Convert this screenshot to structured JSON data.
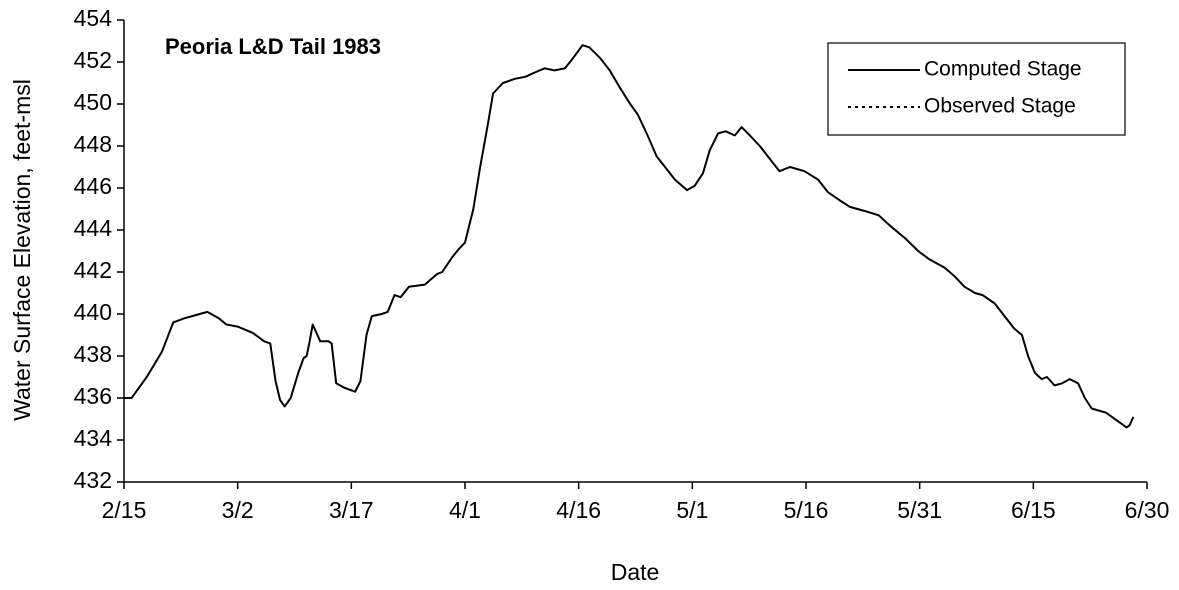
{
  "chart_data": {
    "type": "line",
    "annotation": "Peoria L&D Tail 1983",
    "xlabel": "Date",
    "ylabel": "Water Surface Elevation, feet-msl",
    "x": [
      0,
      1,
      3,
      5,
      6.5,
      8,
      10,
      11,
      12.5,
      13.5,
      15,
      17,
      18.5,
      19.3,
      20,
      20.6,
      21.2,
      22,
      23,
      23.7,
      24.1,
      24.5,
      24.9,
      25.4,
      25.9,
      27,
      27.4,
      28,
      29,
      30.5,
      31.2,
      32,
      32.7,
      34,
      34.8,
      35.7,
      36.5,
      37.6,
      39.7,
      41.3,
      42,
      43.3,
      44.2,
      45,
      46.1,
      47,
      48,
      48.7,
      50,
      51.6,
      53,
      54.2,
      55.5,
      56.8,
      58.2,
      59.5,
      60.5,
      61.4,
      62.8,
      64.1,
      65.4,
      66.8,
      67.8,
      69.1,
      70.3,
      71.4,
      72.7,
      74.3,
      75.3,
      76.4,
      77.3,
      78.4,
      79.4,
      80.6,
      81.5,
      82.6,
      83.9,
      85.2,
      86.5,
      87.9,
      89.8,
      91.6,
      92.9,
      94.5,
      95.8,
      97.8,
      99.6,
      101.1,
      103.1,
      104.8,
      106.3,
      108.3,
      109.6,
      110.9,
      112.3,
      113.3,
      114.9,
      116.2,
      117.5,
      118.5,
      119.3,
      120.2,
      121.1,
      121.8,
      122.8,
      123.8,
      124.8,
      125.9,
      126.8,
      127.7,
      129.6,
      132.3,
      132.7,
      133.2
    ],
    "series": [
      {
        "name": "Computed Stage",
        "color": "#000000",
        "line_style": "solid",
        "values": [
          436.0,
          436.0,
          437.0,
          438.2,
          439.6,
          439.8,
          440.0,
          440.1,
          439.8,
          439.5,
          439.4,
          439.1,
          438.7,
          438.6,
          436.8,
          435.9,
          435.6,
          436.0,
          437.2,
          437.9,
          438.0,
          438.7,
          439.5,
          439.1,
          438.7,
          438.7,
          438.6,
          436.7,
          436.5,
          436.3,
          436.8,
          439.0,
          439.9,
          440.0,
          440.1,
          440.9,
          440.8,
          441.3,
          441.4,
          441.9,
          442.0,
          442.7,
          443.1,
          443.4,
          445.0,
          447.0,
          449.0,
          450.5,
          451.0,
          451.2,
          451.3,
          451.5,
          451.7,
          451.6,
          451.7,
          452.3,
          452.8,
          452.7,
          452.2,
          451.6,
          450.8,
          450.0,
          449.5,
          448.5,
          447.5,
          447.0,
          446.4,
          445.9,
          446.1,
          446.7,
          447.8,
          448.6,
          448.7,
          448.5,
          448.9,
          448.5,
          448.0,
          447.4,
          446.8,
          447.0,
          446.8,
          446.4,
          445.8,
          445.4,
          445.1,
          444.9,
          444.7,
          444.2,
          443.6,
          443.0,
          442.6,
          442.2,
          441.8,
          441.3,
          441.0,
          440.9,
          440.5,
          439.9,
          439.3,
          439.0,
          438.0,
          437.2,
          436.9,
          437.0,
          436.6,
          436.7,
          436.9,
          436.7,
          436.0,
          435.5,
          435.3,
          434.6,
          434.7,
          435.1
        ]
      },
      {
        "name": "Observed Stage",
        "color": "#000000",
        "line_style": "dotted",
        "values": [
          null,
          null,
          null,
          null,
          null,
          null,
          null,
          null,
          null,
          null,
          null,
          null,
          null,
          null,
          null,
          null,
          null,
          null,
          null,
          null,
          null,
          null,
          null,
          null,
          null,
          null,
          null,
          null,
          null,
          null,
          null,
          null,
          null,
          null,
          null,
          null,
          null,
          null,
          null,
          null,
          null,
          null,
          null,
          null,
          null,
          null,
          null,
          null,
          null,
          null,
          null,
          null,
          null,
          null,
          null,
          null,
          null,
          null,
          null,
          null,
          null,
          null,
          null,
          null,
          null,
          null,
          null,
          null,
          null,
          null,
          null,
          null,
          null,
          null,
          null,
          null,
          null,
          null,
          null,
          null,
          null,
          null,
          null,
          null,
          null,
          null,
          null,
          null,
          null,
          null,
          null,
          null,
          null,
          null,
          null,
          null,
          null,
          null,
          null,
          null,
          null,
          null,
          null,
          null,
          null,
          null,
          null,
          null,
          null,
          null,
          null,
          null,
          null,
          null
        ]
      }
    ],
    "xlim": [
      0,
      135
    ],
    "xticks": [
      {
        "value": 0,
        "label": "2/15"
      },
      {
        "value": 15,
        "label": "3/2"
      },
      {
        "value": 30,
        "label": "3/17"
      },
      {
        "value": 45,
        "label": "4/1"
      },
      {
        "value": 60,
        "label": "4/16"
      },
      {
        "value": 75,
        "label": "5/1"
      },
      {
        "value": 90,
        "label": "5/16"
      },
      {
        "value": 105,
        "label": "5/31"
      },
      {
        "value": 120,
        "label": "6/15"
      },
      {
        "value": 135,
        "label": "6/30"
      }
    ],
    "ylim": [
      432,
      454
    ],
    "yticks": [
      432,
      434,
      436,
      438,
      440,
      442,
      444,
      446,
      448,
      450,
      452,
      454
    ],
    "grid": false,
    "legend": "upper right"
  }
}
